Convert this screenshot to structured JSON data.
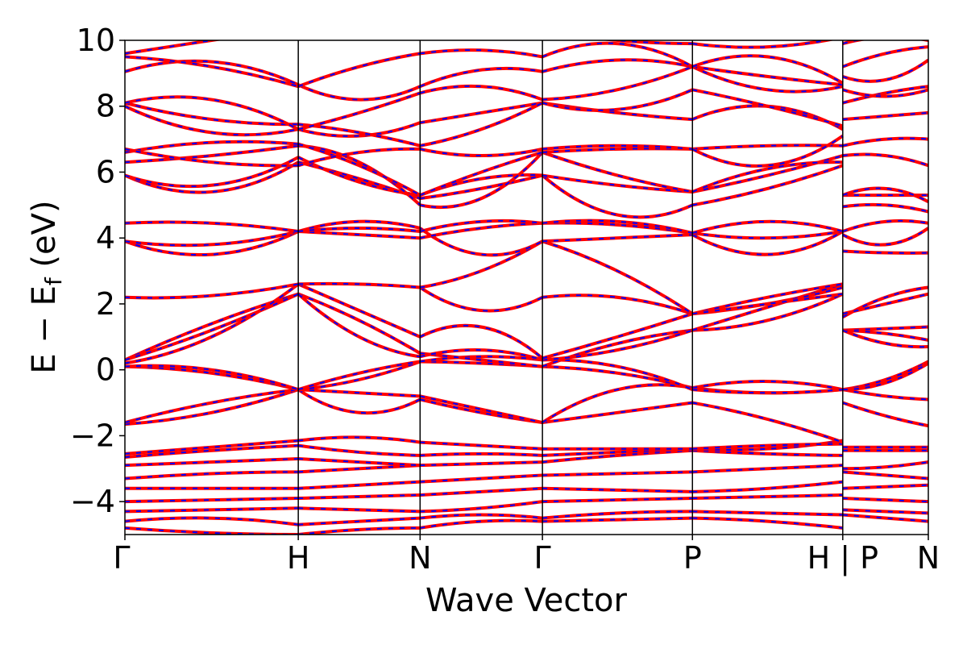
{
  "chart_data": {
    "type": "line",
    "title": "",
    "xlabel": "Wave Vector",
    "ylabel_parts": {
      "main": "E − E",
      "sub": "f",
      "unit": " (eV)"
    },
    "ylim": [
      -5,
      10
    ],
    "y_ticks": [
      -4,
      -2,
      0,
      2,
      4,
      6,
      8,
      10
    ],
    "y_tick_labels": [
      "−4",
      "−2",
      "0",
      "2",
      "4",
      "6",
      "8",
      "10"
    ],
    "x_range": [
      0,
      1
    ],
    "k_points": [
      {
        "x": 0.0,
        "label": "Γ"
      },
      {
        "x": 0.2158,
        "label": "H"
      },
      {
        "x": 0.3674,
        "label": "N"
      },
      {
        "x": 0.5197,
        "label": "Γ"
      },
      {
        "x": 0.7064,
        "label": "P"
      },
      {
        "x": 0.8935,
        "label": "H | P"
      },
      {
        "x": 1.0,
        "label": "N"
      }
    ],
    "grid": false,
    "legend": "none",
    "series_style": {
      "color": "#ff0000",
      "dash_color": "#0000ff"
    },
    "segments": [
      {
        "x0": 0.0,
        "x1": 0.2158,
        "bands": [
          [
            -4.8,
            -4.95,
            -5.0
          ],
          [
            -4.6,
            -4.5,
            -4.7
          ],
          [
            -4.3,
            -4.25,
            -4.2
          ],
          [
            -4.0,
            -3.95,
            -3.9
          ],
          [
            -3.6,
            -3.6,
            -3.6
          ],
          [
            -3.3,
            -3.15,
            -3.1
          ],
          [
            -2.9,
            -2.8,
            -2.7
          ],
          [
            -2.65,
            -2.45,
            -2.3
          ],
          [
            -2.55,
            -2.35,
            -2.15
          ],
          [
            -1.65,
            -1.3,
            -0.6
          ],
          [
            -1.6,
            -1.0,
            -0.6
          ],
          [
            0.1,
            -0.1,
            -0.6
          ],
          [
            0.1,
            0.0,
            -0.6
          ],
          [
            0.3,
            1.4,
            2.3
          ],
          [
            0.3,
            1.2,
            2.3
          ],
          [
            0.2,
            1.0,
            2.6
          ],
          [
            2.2,
            2.25,
            2.6
          ],
          [
            3.9,
            3.5,
            4.2
          ],
          [
            3.9,
            3.8,
            4.2
          ],
          [
            4.45,
            4.45,
            4.2
          ],
          [
            5.9,
            5.4,
            6.3
          ],
          [
            5.9,
            5.6,
            6.45
          ],
          [
            6.3,
            6.5,
            6.8
          ],
          [
            6.6,
            6.9,
            6.85
          ],
          [
            6.7,
            6.3,
            6.2
          ],
          [
            8.0,
            7.2,
            7.3
          ],
          [
            8.1,
            7.6,
            7.45
          ],
          [
            8.1,
            8.2,
            7.3
          ],
          [
            9.05,
            9.35,
            8.65
          ],
          [
            9.5,
            9.2,
            8.6
          ],
          [
            9.6,
            10.0,
            10.4
          ]
        ]
      },
      {
        "x0": 0.2158,
        "x1": 0.3674,
        "bands": [
          [
            -5.0,
            -4.85,
            -4.8
          ],
          [
            -4.7,
            -4.6,
            -4.5
          ],
          [
            -4.2,
            -4.25,
            -4.3
          ],
          [
            -3.9,
            -3.85,
            -3.8
          ],
          [
            -3.6,
            -3.5,
            -3.4
          ],
          [
            -3.1,
            -3.0,
            -2.9
          ],
          [
            -2.7,
            -2.8,
            -2.9
          ],
          [
            -2.3,
            -2.5,
            -2.6
          ],
          [
            -2.15,
            -2.05,
            -2.2
          ],
          [
            -0.6,
            -1.3,
            -0.9
          ],
          [
            -0.6,
            -0.7,
            -0.8
          ],
          [
            -0.6,
            -0.3,
            0.25
          ],
          [
            -0.6,
            -0.1,
            0.25
          ],
          [
            2.3,
            1.5,
            0.5
          ],
          [
            2.3,
            1.0,
            0.4
          ],
          [
            2.6,
            1.8,
            1.0
          ],
          [
            2.6,
            2.6,
            2.5
          ],
          [
            4.2,
            4.5,
            4.3
          ],
          [
            4.2,
            4.1,
            4.0
          ],
          [
            4.2,
            4.3,
            4.2
          ],
          [
            6.3,
            5.8,
            5.2
          ],
          [
            6.45,
            5.7,
            5.3
          ],
          [
            6.8,
            6.3,
            5.0
          ],
          [
            6.85,
            6.2,
            5.3
          ],
          [
            6.2,
            6.6,
            6.7
          ],
          [
            7.3,
            7.1,
            7.5
          ],
          [
            7.45,
            7.2,
            6.8
          ],
          [
            7.3,
            7.8,
            8.4
          ],
          [
            8.65,
            8.2,
            8.6
          ],
          [
            8.6,
            9.2,
            9.6
          ],
          [
            10.4,
            10.4,
            10.4
          ]
        ]
      },
      {
        "x0": 0.3674,
        "x1": 0.5197,
        "bands": [
          [
            -4.8,
            -4.6,
            -4.6
          ],
          [
            -4.5,
            -4.4,
            -4.5
          ],
          [
            -4.3,
            -4.2,
            -4.0
          ],
          [
            -3.8,
            -3.7,
            -3.6
          ],
          [
            -3.4,
            -3.3,
            -3.2
          ],
          [
            -2.9,
            -2.85,
            -2.8
          ],
          [
            -2.6,
            -2.55,
            -2.6
          ],
          [
            -2.2,
            -2.3,
            -2.4
          ],
          [
            -0.9,
            -1.3,
            -1.6
          ],
          [
            -0.8,
            -1.2,
            -1.6
          ],
          [
            0.25,
            0.2,
            0.1
          ],
          [
            0.25,
            0.4,
            0.3
          ],
          [
            0.5,
            0.3,
            0.1
          ],
          [
            0.4,
            0.6,
            0.3
          ],
          [
            1.0,
            1.3,
            0.35
          ],
          [
            2.5,
            1.8,
            2.2
          ],
          [
            2.5,
            3.0,
            3.9
          ],
          [
            4.3,
            3.5,
            3.9
          ],
          [
            4.0,
            4.3,
            4.45
          ],
          [
            4.2,
            4.5,
            4.45
          ],
          [
            5.2,
            5.5,
            5.9
          ],
          [
            5.3,
            5.8,
            5.9
          ],
          [
            5.0,
            5.2,
            6.6
          ],
          [
            5.3,
            6.0,
            6.6
          ],
          [
            6.7,
            6.5,
            6.7
          ],
          [
            7.5,
            7.8,
            8.1
          ],
          [
            6.8,
            7.3,
            8.1
          ],
          [
            8.4,
            8.6,
            8.2
          ],
          [
            8.6,
            9.1,
            9.05
          ],
          [
            9.6,
            9.7,
            9.5
          ],
          [
            10.4,
            10.2,
            10.3
          ]
        ]
      },
      {
        "x0": 0.5197,
        "x1": 0.7064,
        "bands": [
          [
            -4.6,
            -4.55,
            -4.5
          ],
          [
            -4.5,
            -4.35,
            -4.3
          ],
          [
            -4.0,
            -3.95,
            -3.9
          ],
          [
            -3.6,
            -3.65,
            -3.7
          ],
          [
            -3.2,
            -3.15,
            -3.1
          ],
          [
            -2.8,
            -2.6,
            -2.45
          ],
          [
            -2.6,
            -2.5,
            -2.4
          ],
          [
            -2.4,
            -2.4,
            -2.4
          ],
          [
            -1.6,
            -1.3,
            -1.0
          ],
          [
            -1.6,
            -0.6,
            -0.55
          ],
          [
            0.1,
            -0.1,
            -0.55
          ],
          [
            0.3,
            0.1,
            -0.6
          ],
          [
            0.1,
            0.8,
            1.2
          ],
          [
            0.3,
            0.6,
            1.2
          ],
          [
            0.35,
            1.0,
            1.7
          ],
          [
            2.2,
            2.2,
            1.7
          ],
          [
            3.9,
            3.0,
            1.7
          ],
          [
            3.9,
            4.0,
            4.1
          ],
          [
            4.45,
            4.4,
            4.15
          ],
          [
            4.45,
            4.5,
            4.15
          ],
          [
            5.9,
            4.7,
            5.0
          ],
          [
            5.9,
            5.6,
            5.4
          ],
          [
            6.6,
            5.9,
            5.4
          ],
          [
            6.6,
            6.7,
            6.7
          ],
          [
            6.7,
            6.8,
            6.7
          ],
          [
            8.1,
            7.8,
            7.6
          ],
          [
            8.1,
            7.9,
            8.5
          ],
          [
            8.2,
            8.5,
            9.2
          ],
          [
            9.05,
            9.4,
            9.2
          ],
          [
            9.5,
            9.9,
            9.2
          ],
          [
            10.3,
            10.0,
            9.9
          ]
        ]
      },
      {
        "x0": 0.7064,
        "x1": 0.8935,
        "bands": [
          [
            -4.5,
            -4.6,
            -4.8
          ],
          [
            -4.3,
            -4.35,
            -4.4
          ],
          [
            -3.9,
            -3.85,
            -3.8
          ],
          [
            -3.7,
            -3.6,
            -3.4
          ],
          [
            -3.1,
            -3.0,
            -2.9
          ],
          [
            -2.45,
            -2.55,
            -2.6
          ],
          [
            -2.4,
            -2.4,
            -2.15
          ],
          [
            -2.4,
            -2.3,
            -2.25
          ],
          [
            -1.0,
            -1.5,
            -2.2
          ],
          [
            -0.55,
            -0.7,
            -0.6
          ],
          [
            -0.55,
            -0.35,
            -0.6
          ],
          [
            -0.6,
            -0.7,
            -0.6
          ],
          [
            1.2,
            1.5,
            2.3
          ],
          [
            1.2,
            1.9,
            2.6
          ],
          [
            1.7,
            2.0,
            2.5
          ],
          [
            1.7,
            2.2,
            2.6
          ],
          [
            1.7,
            2.0,
            2.3
          ],
          [
            4.1,
            3.5,
            4.2
          ],
          [
            4.15,
            4.0,
            4.2
          ],
          [
            4.15,
            4.5,
            4.2
          ],
          [
            5.0,
            5.5,
            6.2
          ],
          [
            5.4,
            5.9,
            6.5
          ],
          [
            5.4,
            6.1,
            6.3
          ],
          [
            6.7,
            6.8,
            6.8
          ],
          [
            6.7,
            6.2,
            7.1
          ],
          [
            7.6,
            8.0,
            7.3
          ],
          [
            8.5,
            8.0,
            7.4
          ],
          [
            9.2,
            8.5,
            8.6
          ],
          [
            9.2,
            8.9,
            8.65
          ],
          [
            9.2,
            9.5,
            8.7
          ],
          [
            9.9,
            9.8,
            10.1
          ]
        ]
      },
      {
        "x0": 0.8935,
        "x1": 1.0,
        "bands": [
          [
            -4.4,
            -4.5,
            -4.6
          ],
          [
            -4.25,
            -4.3,
            -4.35
          ],
          [
            -3.9,
            -3.95,
            -4.0
          ],
          [
            -3.6,
            -3.55,
            -3.5
          ],
          [
            -3.1,
            -3.2,
            -3.3
          ],
          [
            -3.0,
            -2.95,
            -2.8
          ],
          [
            -2.45,
            -2.45,
            -2.45
          ],
          [
            -2.35,
            -2.35,
            -2.35
          ],
          [
            -1.0,
            -1.4,
            -1.7
          ],
          [
            -0.6,
            -0.8,
            -0.9
          ],
          [
            -0.6,
            -0.3,
            0.25
          ],
          [
            -0.6,
            -0.4,
            0.2
          ],
          [
            1.2,
            1.25,
            1.3
          ],
          [
            1.2,
            1.1,
            0.9
          ],
          [
            1.2,
            0.8,
            0.7
          ],
          [
            1.6,
            2.2,
            2.5
          ],
          [
            1.7,
            2.0,
            2.3
          ],
          [
            3.6,
            3.55,
            3.55
          ],
          [
            4.1,
            3.8,
            4.3
          ],
          [
            4.2,
            4.5,
            4.45
          ],
          [
            4.95,
            5.0,
            4.8
          ],
          [
            5.3,
            5.3,
            5.3
          ],
          [
            5.3,
            5.5,
            5.1
          ],
          [
            6.5,
            6.5,
            6.2
          ],
          [
            6.8,
            7.0,
            7.0
          ],
          [
            7.6,
            7.7,
            7.8
          ],
          [
            8.1,
            8.4,
            8.6
          ],
          [
            8.5,
            8.3,
            8.5
          ],
          [
            8.9,
            8.8,
            9.4
          ],
          [
            9.2,
            9.6,
            9.8
          ],
          [
            9.9,
            10.1,
            10.0
          ]
        ]
      }
    ]
  }
}
